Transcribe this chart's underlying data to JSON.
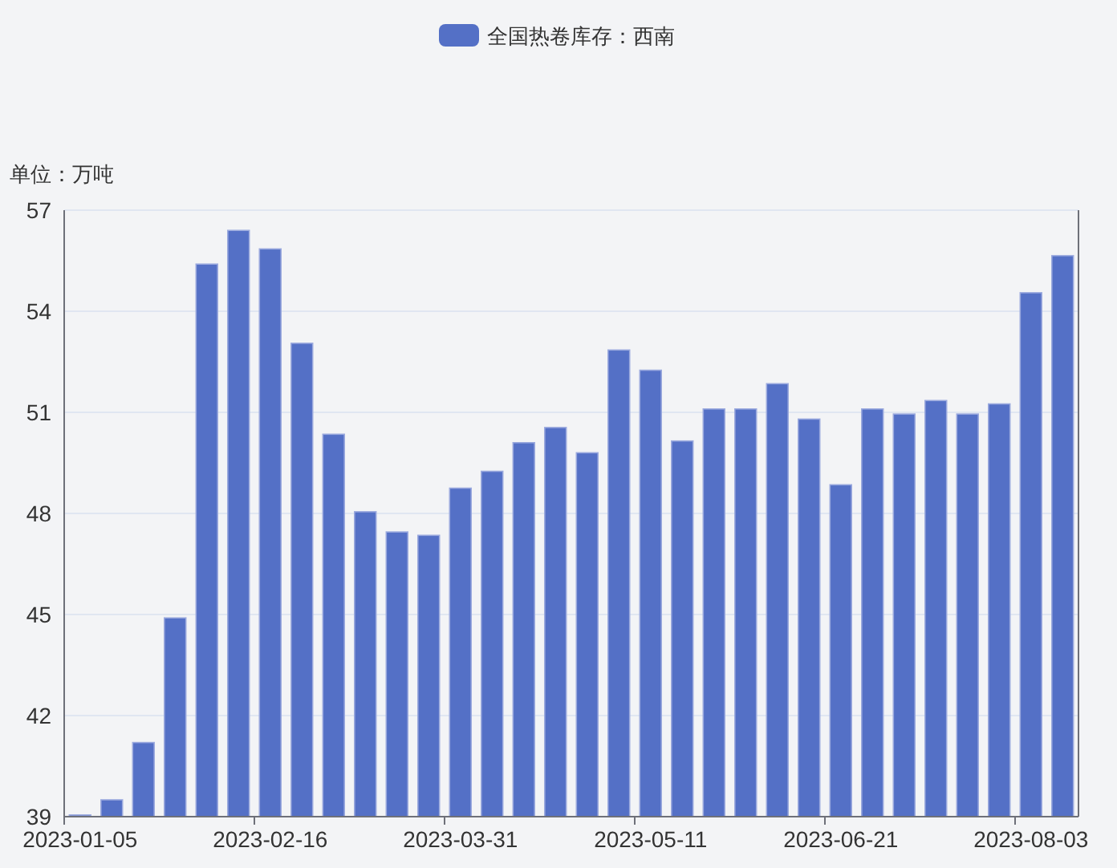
{
  "chart_data": {
    "type": "bar",
    "ylabel": "单位：万吨",
    "categories": [
      "2023-01-05",
      null,
      null,
      null,
      null,
      null,
      "2023-02-16",
      null,
      null,
      null,
      null,
      null,
      "2023-03-31",
      null,
      null,
      null,
      null,
      null,
      "2023-05-11",
      null,
      null,
      null,
      null,
      null,
      "2023-06-21",
      null,
      null,
      null,
      null,
      null,
      "2023-08-03",
      null
    ],
    "series": [
      {
        "name": "全国热卷库存：西南",
        "color": "#5470c6",
        "values": [
          39.05,
          39.5,
          41.2,
          44.9,
          55.4,
          56.4,
          55.85,
          53.05,
          50.35,
          48.05,
          47.45,
          47.35,
          48.75,
          49.25,
          50.1,
          50.55,
          49.8,
          52.85,
          52.25,
          50.15,
          51.1,
          51.1,
          51.85,
          50.8,
          48.85,
          51.1,
          50.95,
          51.35,
          50.95,
          51.25,
          54.55,
          55.65
        ]
      }
    ],
    "ylim": [
      39,
      57
    ],
    "yticks": [
      39,
      42,
      45,
      48,
      51,
      54,
      57
    ],
    "grid": "y",
    "legend": "top"
  }
}
